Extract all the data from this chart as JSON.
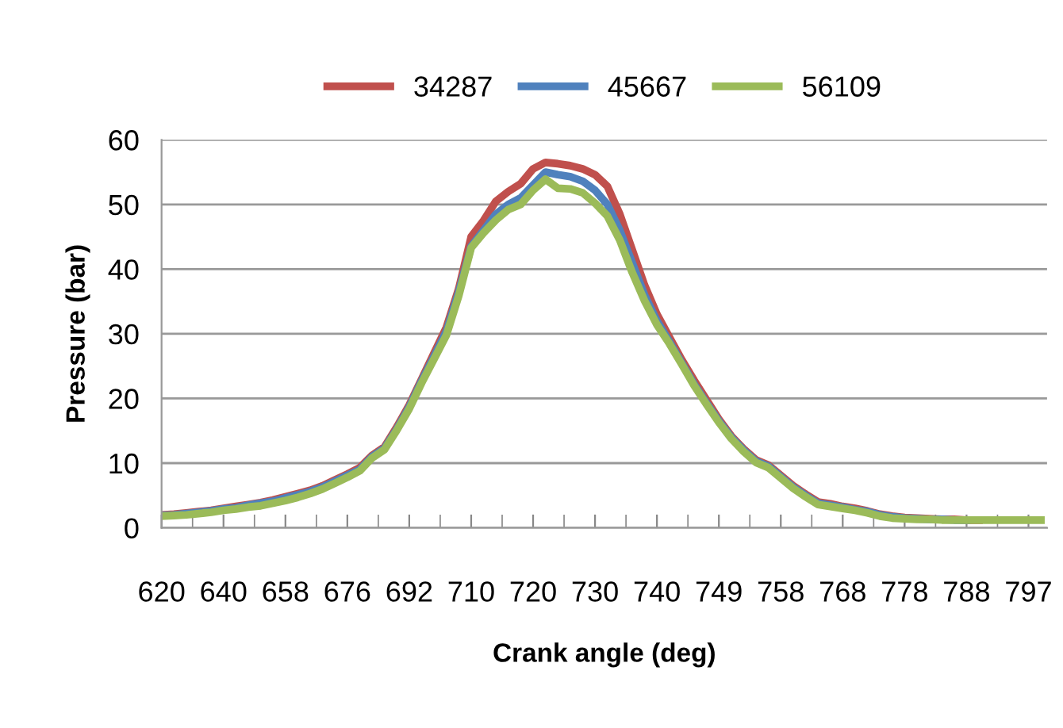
{
  "chart_data": {
    "type": "line",
    "xlabel": "Crank angle (deg)",
    "ylabel": "Pressure (bar)",
    "ylim": [
      0,
      60
    ],
    "yticks": [
      0,
      10,
      20,
      30,
      40,
      50,
      60
    ],
    "grid": "y",
    "legend": "top",
    "marker": "none",
    "line_style": "solid",
    "categories": [
      "620",
      null,
      null,
      null,
      null,
      "640",
      null,
      null,
      null,
      null,
      "658",
      null,
      null,
      null,
      null,
      "676",
      null,
      null,
      null,
      null,
      "692",
      null,
      null,
      null,
      null,
      "710",
      null,
      null,
      null,
      null,
      "720",
      null,
      null,
      null,
      null,
      "730",
      null,
      null,
      null,
      null,
      "740",
      null,
      null,
      null,
      null,
      "749",
      null,
      null,
      null,
      null,
      "758",
      null,
      null,
      null,
      null,
      "768",
      null,
      null,
      null,
      null,
      "778",
      null,
      null,
      null,
      null,
      "788",
      null,
      null,
      null,
      null,
      "797",
      null
    ],
    "series": [
      {
        "name": "34287",
        "color": "#c0504d",
        "values": [
          2.0,
          2.1,
          2.3,
          2.5,
          2.7,
          3.0,
          3.3,
          3.6,
          3.9,
          4.3,
          4.8,
          5.3,
          5.8,
          6.5,
          7.4,
          8.3,
          9.3,
          11.2,
          12.5,
          15.6,
          19.0,
          23.0,
          27.0,
          31.0,
          37.0,
          45.0,
          47.5,
          50.5,
          52.0,
          53.2,
          55.5,
          56.5,
          56.3,
          56.0,
          55.5,
          54.6,
          52.8,
          48.5,
          43.0,
          37.5,
          33.0,
          29.5,
          26.0,
          22.8,
          19.8,
          16.8,
          14.2,
          12.2,
          10.5,
          9.7,
          8.1,
          6.5,
          5.2,
          4.0,
          3.7,
          3.3,
          3.0,
          2.6,
          2.1,
          1.8,
          1.6,
          1.5,
          1.4,
          1.3,
          1.3,
          1.2,
          1.2,
          null,
          null,
          null,
          null,
          null
        ]
      },
      {
        "name": "45667",
        "color": "#4f81bd",
        "values": [
          1.9,
          2.0,
          2.2,
          2.4,
          2.6,
          2.9,
          3.1,
          3.5,
          3.8,
          4.1,
          4.6,
          5.1,
          5.6,
          6.3,
          7.2,
          8.1,
          9.0,
          11.0,
          12.3,
          15.3,
          18.7,
          22.7,
          26.5,
          30.4,
          36.5,
          43.5,
          46.0,
          48.5,
          50.0,
          51.0,
          53.0,
          55.0,
          54.6,
          54.3,
          53.6,
          52.2,
          50.0,
          46.0,
          41.0,
          36.0,
          32.0,
          28.8,
          25.5,
          22.2,
          19.3,
          16.5,
          14.0,
          12.0,
          10.3,
          9.5,
          7.9,
          6.3,
          5.0,
          3.8,
          3.5,
          3.2,
          2.8,
          2.5,
          2.0,
          1.7,
          1.5,
          1.4,
          1.3,
          1.3,
          1.2,
          1.2,
          null,
          null,
          null,
          null,
          null,
          null
        ]
      },
      {
        "name": "56109",
        "color": "#9bbb59",
        "values": [
          1.8,
          1.9,
          2.0,
          2.2,
          2.4,
          2.7,
          2.9,
          3.2,
          3.4,
          3.8,
          4.2,
          4.7,
          5.3,
          6.0,
          6.9,
          7.8,
          8.8,
          10.8,
          12.1,
          15.1,
          18.4,
          22.4,
          26.1,
          29.8,
          35.9,
          43.3,
          45.6,
          47.6,
          49.2,
          50.0,
          52.2,
          53.9,
          52.5,
          52.4,
          51.8,
          50.2,
          48.2,
          44.5,
          39.5,
          35.1,
          31.4,
          28.5,
          25.3,
          22.0,
          19.1,
          16.3,
          13.8,
          11.8,
          10.1,
          9.3,
          7.7,
          6.1,
          4.8,
          3.6,
          3.3,
          3.0,
          2.7,
          2.3,
          1.8,
          1.5,
          1.4,
          1.3,
          1.3,
          1.2,
          1.2,
          1.2,
          1.2,
          1.2,
          1.2,
          1.2,
          1.2,
          1.2
        ]
      }
    ]
  }
}
